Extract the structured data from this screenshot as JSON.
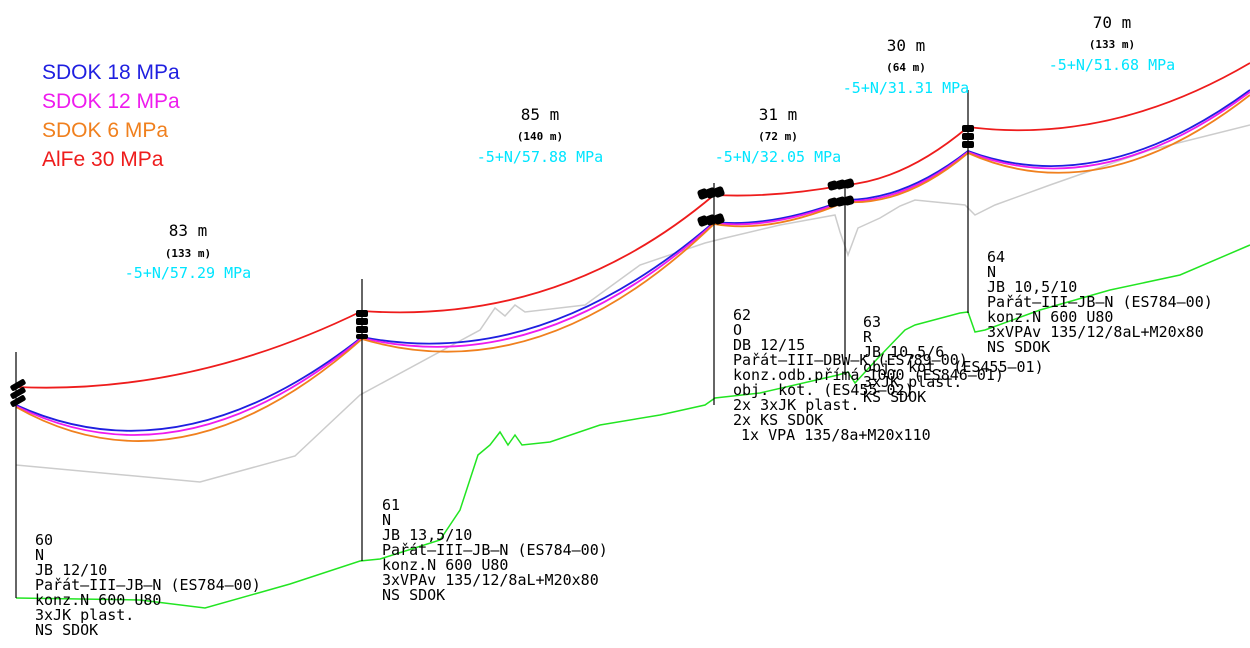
{
  "legend": [
    {
      "label": "SDOK 18 MPa",
      "color": "#1f1fe0"
    },
    {
      "label": "SDOK 12 MPa",
      "color": "#ee1bee"
    },
    {
      "label": "SDOK 6 MPa",
      "color": "#f0801e"
    },
    {
      "label": "AlFe 30 MPa",
      "color": "#ee1c1c"
    }
  ],
  "colors": {
    "terrain": "#22e522",
    "ground_line": "#cccccc",
    "pole": "#000000",
    "tension": "#00e5ff",
    "text": "#000000"
  },
  "spans": [
    {
      "length": "83 m",
      "sub": "(133 m)",
      "tension": "-5+N/57.29 MPa"
    },
    {
      "length": "85 m",
      "sub": "(140 m)",
      "tension": "-5+N/57.88 MPa"
    },
    {
      "length": "31 m",
      "sub": "(72 m)",
      "tension": "-5+N/32.05 MPa"
    },
    {
      "length": "30 m",
      "sub": "(64 m)",
      "tension": "-5+N/31.31 MPa"
    },
    {
      "length": "70 m",
      "sub": "(133 m)",
      "tension": "-5+N/51.68 MPa"
    }
  ],
  "poles": [
    {
      "lines": [
        "60",
        "N",
        "JB 12/10",
        "Pařát–III–JB–N (ES784–00)",
        "konz.N 600 U80",
        "3xJK plast.",
        "NS SDOK"
      ]
    },
    {
      "lines": [
        "61",
        "N",
        "JB 13,5/10",
        "Pařát–III–JB–N (ES784–00)",
        "konz.N 600 U80",
        "3xVPAv 135/12/8aL+M20x80",
        "NS SDOK"
      ]
    },
    {
      "lines": [
        "62",
        "O",
        "DB 12/15",
        "Pařát–III–DBW–K (ES789–00)",
        "konz.odb.přímá 1000 (ES846–01)",
        "obj. kot. (ES455–02)",
        "2x 3xJK plast.",
        "2x KS SDOK",
        "1x VPA 135/8a+M20x110"
      ]
    },
    {
      "lines": [
        "63",
        "R",
        "JB 10,5/6",
        "obj. kot. (ES455–01)",
        "3xJK plast.",
        "KS SDOK"
      ]
    },
    {
      "lines": [
        "64",
        "N",
        "JB 10,5/10",
        "Pařát–III–JB–N (ES784–00)",
        "konz.N 600 U80",
        "3xVPAv 135/12/8aL+M20x80",
        "NS SDOK"
      ]
    }
  ]
}
